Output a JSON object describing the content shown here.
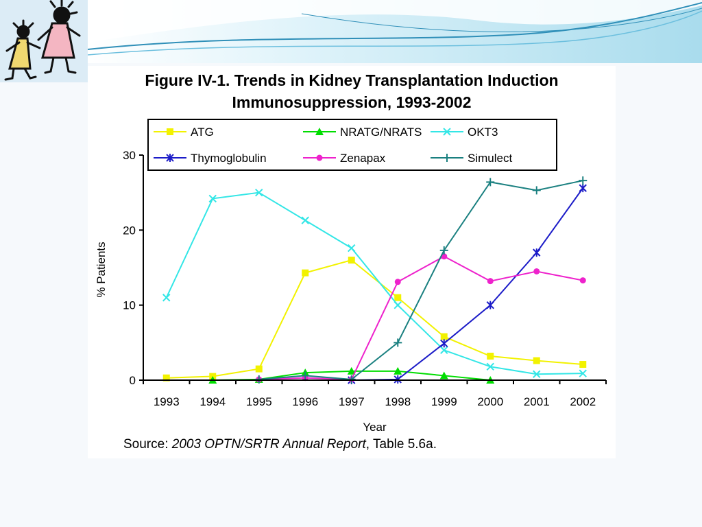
{
  "slide": {
    "colors": {
      "background": "#f6f9fc",
      "wave_dark": "#2f8fb8",
      "wave_light": "#9fd6ea"
    },
    "logo_icon": "children-drawing-icon"
  },
  "figure": {
    "title_line1": "Figure IV-1. Trends in Kidney Transplantation Induction",
    "title_line2": "Immunosuppression, 1993-2002",
    "source_prefix": "Source: ",
    "source_italic": "2003 OPTN/SRTR Annual Report",
    "source_suffix": ", Table 5.6a."
  },
  "chart_data": {
    "type": "line",
    "title": "Figure IV-1. Trends in Kidney Transplantation Induction Immunosuppression, 1993-2002",
    "xlabel": "Year",
    "ylabel": "% Patients",
    "categories": [
      "1993",
      "1994",
      "1995",
      "1996",
      "1997",
      "1998",
      "1999",
      "2000",
      "2001",
      "2002"
    ],
    "ylim": [
      0,
      30
    ],
    "yticks": [
      0,
      10,
      20,
      30
    ],
    "grid": false,
    "legend_position": "top",
    "series": [
      {
        "name": "ATG",
        "color": "#f2f200",
        "marker": "square",
        "values": [
          0.3,
          0.5,
          1.5,
          14.3,
          16.0,
          11.0,
          5.8,
          3.2,
          2.6,
          2.1
        ]
      },
      {
        "name": "NRATG/NRATS",
        "color": "#00dd00",
        "marker": "triangle",
        "values": [
          null,
          0.0,
          0.1,
          1.0,
          1.2,
          1.2,
          0.6,
          0.0,
          null,
          null
        ]
      },
      {
        "name": "OKT3",
        "color": "#33e6e6",
        "marker": "x",
        "values": [
          11.0,
          24.2,
          25.0,
          21.3,
          17.6,
          10.0,
          4.0,
          1.8,
          0.8,
          0.9
        ]
      },
      {
        "name": "Thymoglobulin",
        "color": "#1c1cc8",
        "marker": "asterisk",
        "values": [
          null,
          null,
          null,
          null,
          0.0,
          0.1,
          4.9,
          10.0,
          17.0,
          25.6
        ]
      },
      {
        "name": "Zenapax",
        "color": "#ee22cc",
        "marker": "circle",
        "values": [
          null,
          null,
          0.1,
          0.3,
          0.1,
          13.1,
          16.5,
          13.2,
          14.5,
          13.3
        ]
      },
      {
        "name": "Simulect",
        "color": "#1a8080",
        "marker": "plus",
        "values": [
          null,
          null,
          0.1,
          0.6,
          0.1,
          5.0,
          17.3,
          26.4,
          25.3,
          26.6
        ]
      }
    ]
  }
}
